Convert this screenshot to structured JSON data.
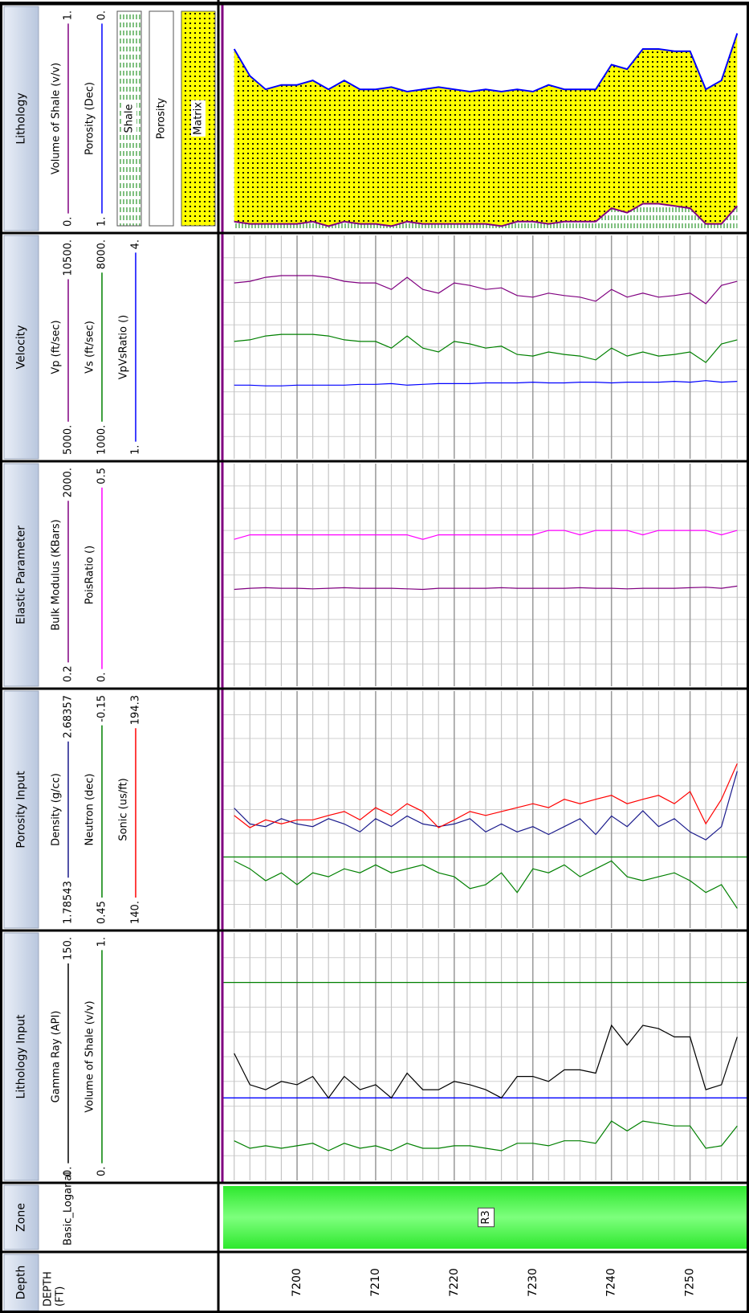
{
  "chart_data": {
    "type": "well-log",
    "depth": {
      "title": "Depth",
      "unit": [
        "DEPTH",
        "(FT)"
      ],
      "lim": [
        7190.6,
        7257.5
      ],
      "ticks": [
        7200,
        7210,
        7220,
        7230,
        7240,
        7250
      ],
      "x": [
        7192,
        7194,
        7196,
        7198,
        7200,
        7202,
        7204,
        7206,
        7208,
        7210,
        7212,
        7214,
        7216,
        7218,
        7220,
        7222,
        7224,
        7226,
        7228,
        7230,
        7232,
        7234,
        7236,
        7238,
        7240,
        7242,
        7244,
        7246,
        7248,
        7250,
        7252,
        7254,
        7256
      ]
    },
    "zone": {
      "title": "Zone",
      "name": "Basic_Loganal",
      "label": "R3",
      "color": "#2ee82e"
    },
    "tracks": [
      {
        "title": "Lithology Input",
        "divisions": 10,
        "curves": [
          {
            "name": "Gamma Ray (API)",
            "color": "#000000",
            "xlim": [
              {
                "value": 0,
                "label": "0."
              },
              {
                "value": 150,
                "label": "150."
              }
            ],
            "cutoff": {
              "value": 50,
              "color": "#0000ff"
            },
            "values": [
              77,
              58,
              55,
              60,
              58,
              63,
              50,
              63,
              55,
              58,
              50,
              65,
              55,
              55,
              60,
              58,
              55,
              50,
              63,
              63,
              60,
              67,
              67,
              65,
              94,
              82,
              94,
              92,
              87,
              87,
              55,
              58,
              87
            ]
          },
          {
            "name": "Volume of Shale (v/v)",
            "color": "#008000",
            "xlim": [
              {
                "value": 0,
                "label": "0."
              },
              {
                "value": 1,
                "label": "1."
              }
            ],
            "cutoff": {
              "value": 0.8,
              "color": "#008000"
            },
            "values": [
              0.16,
              0.13,
              0.14,
              0.13,
              0.14,
              0.15,
              0.12,
              0.15,
              0.13,
              0.14,
              0.12,
              0.15,
              0.13,
              0.13,
              0.14,
              0.14,
              0.13,
              0.12,
              0.15,
              0.15,
              0.14,
              0.16,
              0.16,
              0.15,
              0.24,
              0.2,
              0.24,
              0.23,
              0.22,
              0.22,
              0.13,
              0.14,
              0.22
            ]
          }
        ]
      },
      {
        "title": "Porosity Input",
        "divisions": 10,
        "curves": [
          {
            "name": "Density (g/cc)",
            "color": "#1a1a8c",
            "xlim": [
              1.78543,
              2.68357
            ],
            "values": [
              2.24,
              2.18,
              2.17,
              2.2,
              2.18,
              2.17,
              2.2,
              2.18,
              2.15,
              2.2,
              2.17,
              2.21,
              2.18,
              2.17,
              2.18,
              2.2,
              2.15,
              2.18,
              2.15,
              2.17,
              2.14,
              2.17,
              2.2,
              2.14,
              2.21,
              2.17,
              2.23,
              2.17,
              2.2,
              2.15,
              2.12,
              2.17,
              2.38
            ]
          },
          {
            "name": "Neutron (dec)",
            "color": "#008000",
            "xlim": [
              0.45,
              -0.15
            ],
            "cutoff": {
              "value": 0.27,
              "color": "#008000"
            },
            "values": [
              0.28,
              0.3,
              0.33,
              0.31,
              0.34,
              0.31,
              0.32,
              0.3,
              0.31,
              0.29,
              0.31,
              0.3,
              0.29,
              0.31,
              0.32,
              0.35,
              0.34,
              0.31,
              0.36,
              0.3,
              0.31,
              0.29,
              0.32,
              0.3,
              0.28,
              0.32,
              0.33,
              0.32,
              0.31,
              0.33,
              0.36,
              0.34,
              0.4
            ]
          },
          {
            "name": "Sonic (us/ft)",
            "color": "#ff0000",
            "xlim": [
              {
                "value": 140,
                "label": "140."
              },
              194.3
            ],
            "values": [
              165.8,
              163,
              164.8,
              163.9,
              164.8,
              164.8,
              165.8,
              166.7,
              164.8,
              167.6,
              165.8,
              168.5,
              166.7,
              163,
              164.8,
              166.7,
              165.8,
              166.7,
              167.6,
              168.5,
              167.6,
              169.5,
              168.5,
              169.5,
              170.4,
              168.5,
              169.5,
              170.4,
              168.5,
              171.3,
              163.9,
              169.5,
              177.7
            ]
          }
        ]
      },
      {
        "title": "Elastic Parameter",
        "divisions": 10,
        "curves": [
          {
            "name": "Bulk Modulus (KBars)",
            "color": "#800080",
            "xlim": [
              0.2,
              {
                "value": 2000,
                "label": "2000."
              }
            ],
            "values": [
              870,
              880,
              885,
              880,
              880,
              875,
              880,
              885,
              880,
              880,
              880,
              875,
              870,
              880,
              880,
              880,
              880,
              885,
              880,
              880,
              880,
              880,
              885,
              880,
              880,
              875,
              880,
              880,
              880,
              885,
              890,
              880,
              900
            ]
          },
          {
            "name": "PoisRatio ()",
            "color": "#ff00ff",
            "xlim": [
              {
                "value": 0,
                "label": "0."
              },
              0.5
            ],
            "values": [
              0.33,
              0.34,
              0.34,
              0.34,
              0.34,
              0.34,
              0.34,
              0.34,
              0.34,
              0.34,
              0.34,
              0.34,
              0.33,
              0.34,
              0.34,
              0.34,
              0.34,
              0.34,
              0.34,
              0.34,
              0.35,
              0.35,
              0.34,
              0.35,
              0.35,
              0.35,
              0.34,
              0.35,
              0.35,
              0.35,
              0.35,
              0.34,
              0.35
            ]
          }
        ]
      },
      {
        "title": "Velocity",
        "divisions": 10,
        "curves": [
          {
            "name": "Vp (ft/sec)",
            "color": "#800080",
            "xlim": [
              {
                "value": 5000,
                "label": "5000."
              },
              {
                "value": 10500,
                "label": "10500."
              }
            ],
            "values": [
              9330,
              9370,
              9470,
              9510,
              9510,
              9510,
              9470,
              9370,
              9330,
              9330,
              9170,
              9470,
              9170,
              9080,
              9330,
              9270,
              9170,
              9210,
              9020,
              8980,
              9080,
              9020,
              8980,
              8880,
              9170,
              8980,
              9080,
              8980,
              9020,
              9080,
              8820,
              9270,
              9370
            ]
          },
          {
            "name": "Vs (ft/sec)",
            "color": "#008000",
            "xlim": [
              {
                "value": 1000,
                "label": "1000."
              },
              {
                "value": 8000,
                "label": "8000."
              }
            ],
            "values": [
              4680,
              4730,
              4850,
              4900,
              4900,
              4900,
              4850,
              4730,
              4680,
              4680,
              4470,
              4850,
              4470,
              4350,
              4680,
              4600,
              4470,
              4530,
              4270,
              4220,
              4350,
              4270,
              4220,
              4100,
              4470,
              4220,
              4350,
              4220,
              4270,
              4350,
              4020,
              4600,
              4730
            ]
          },
          {
            "name": "VpVsRatio ()",
            "color": "#0000ff",
            "xlim": [
              {
                "value": 1,
                "label": "1."
              },
              {
                "value": 4,
                "label": "4."
              }
            ],
            "values": [
              1.99,
              1.99,
              1.98,
              1.98,
              1.99,
              1.99,
              1.99,
              1.99,
              2,
              2,
              2.01,
              1.99,
              2,
              2.01,
              2.01,
              2.01,
              2.02,
              2.02,
              2.02,
              2.03,
              2.02,
              2.02,
              2.03,
              2.03,
              2.02,
              2.03,
              2.03,
              2.03,
              2.04,
              2.03,
              2.05,
              2.03,
              2.04
            ]
          }
        ]
      },
      {
        "title": "Lithology",
        "curves": [
          {
            "name": "Volume of Shale (v/v)",
            "color": "#800080",
            "xlim": [
              {
                "value": 0,
                "label": "0."
              },
              {
                "value": 1,
                "label": "1."
              }
            ],
            "values": [
              0.04,
              0.03,
              0.03,
              0.03,
              0.03,
              0.04,
              0.02,
              0.04,
              0.03,
              0.03,
              0.02,
              0.04,
              0.03,
              0.03,
              0.03,
              0.03,
              0.03,
              0.02,
              0.04,
              0.04,
              0.03,
              0.04,
              0.04,
              0.04,
              0.1,
              0.08,
              0.12,
              0.12,
              0.11,
              0.1,
              0.03,
              0.03,
              0.11
            ]
          },
          {
            "name": "Porosity (Dec)",
            "color": "#0000ff",
            "xlim": [
              {
                "value": 1,
                "label": "1."
              },
              {
                "value": 0,
                "label": "0."
              }
            ],
            "values": [
              0.19,
              0.31,
              0.37,
              0.35,
              0.35,
              0.33,
              0.37,
              0.33,
              0.37,
              0.37,
              0.36,
              0.38,
              0.37,
              0.36,
              0.37,
              0.38,
              0.37,
              0.38,
              0.37,
              0.38,
              0.35,
              0.37,
              0.37,
              0.37,
              0.26,
              0.28,
              0.19,
              0.19,
              0.2,
              0.2,
              0.37,
              0.33,
              0.12
            ]
          }
        ],
        "fills": [
          {
            "name": "Shale",
            "color": "#008000"
          },
          {
            "name": "Porosity",
            "color": "#ffffff"
          },
          {
            "name": "Matrix",
            "color": "#ffff00"
          }
        ]
      }
    ]
  }
}
